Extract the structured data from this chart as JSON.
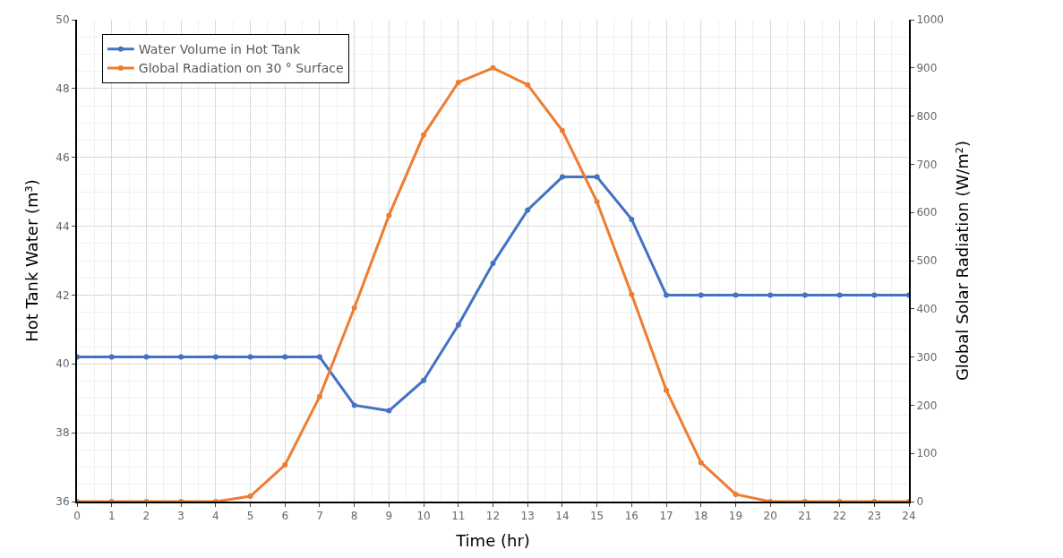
{
  "chart_data": {
    "type": "line",
    "xlabel": "Time (hr)",
    "ylabel": "Hot Tank Water (m³)",
    "y2label": "Global Solar Radiation (W/m²)",
    "x": [
      0,
      1,
      2,
      3,
      4,
      5,
      6,
      7,
      8,
      9,
      10,
      11,
      12,
      13,
      14,
      15,
      16,
      17,
      18,
      19,
      20,
      21,
      22,
      23,
      24
    ],
    "series": [
      {
        "name": "Water Volume in Hot Tank",
        "color": "#4472c4",
        "values": [
          40.2,
          40.2,
          40.2,
          40.2,
          40.2,
          40.2,
          40.2,
          40.2,
          38.8,
          38.64,
          39.52,
          41.13,
          42.92,
          44.47,
          45.43,
          45.43,
          44.2,
          42.0,
          42.0,
          42.0,
          42.0,
          42.0,
          42.0,
          42.0,
          42.0
        ]
      },
      {
        "name": "Global Radiation on 30 ° Surface",
        "color": "#ed7d31",
        "axis": "y2",
        "values": [
          0,
          0,
          0,
          0,
          0,
          11,
          76,
          218,
          402,
          594,
          761,
          870,
          900,
          865,
          770,
          622,
          430,
          231,
          81,
          15,
          0,
          0,
          0,
          0,
          0
        ]
      }
    ],
    "xlim": [
      0,
      24
    ],
    "xticks": [
      0,
      1,
      2,
      3,
      4,
      5,
      6,
      7,
      8,
      9,
      10,
      11,
      12,
      13,
      14,
      15,
      16,
      17,
      18,
      19,
      20,
      21,
      22,
      23,
      24
    ],
    "ylim": [
      36,
      50
    ],
    "yticks": [
      36,
      38,
      40,
      42,
      44,
      46,
      48,
      50
    ],
    "y2lim": [
      0,
      1000
    ],
    "y2ticks": [
      0,
      100,
      200,
      300,
      400,
      500,
      600,
      700,
      800,
      900,
      1000
    ],
    "grid": true,
    "legend": "top left",
    "marker": "circle",
    "line_style": "solid"
  }
}
